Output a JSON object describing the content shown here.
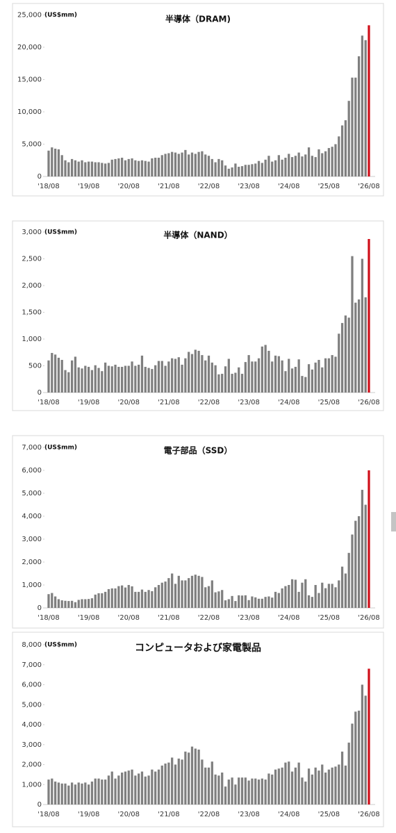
{
  "chart_data": [
    {
      "type": "bar",
      "title": "半導体（DRAM)",
      "unit_label": "(US$mm)",
      "color": "#7f7f7f",
      "last_color": "#d0101b",
      "categories": [
        "'18/08",
        null,
        null,
        null,
        null,
        null,
        null,
        null,
        null,
        null,
        null,
        null,
        "'19/08",
        null,
        null,
        null,
        null,
        null,
        null,
        null,
        null,
        null,
        null,
        null,
        "'20/08",
        null,
        null,
        null,
        null,
        null,
        null,
        null,
        null,
        null,
        null,
        null,
        "'21/08",
        null,
        null,
        null,
        null,
        null,
        null,
        null,
        null,
        null,
        null,
        null,
        "'22/08",
        null,
        null,
        null,
        null,
        null,
        null,
        null,
        null,
        null,
        null,
        null,
        "'23/08",
        null,
        null,
        null,
        null,
        null,
        null,
        null,
        null,
        null,
        null,
        null,
        "'24/08",
        null,
        null,
        null,
        null,
        null,
        null,
        null,
        null,
        null,
        null,
        null,
        "'25/08",
        null,
        null,
        null,
        null,
        null,
        null,
        null,
        null,
        null,
        null,
        null,
        "'26/08"
      ],
      "values": [
        4000,
        4500,
        4300,
        4200,
        3300,
        2500,
        2200,
        2700,
        2500,
        2300,
        2500,
        2200,
        2300,
        2300,
        2200,
        2200,
        2100,
        2000,
        2100,
        2600,
        2700,
        2800,
        2900,
        2500,
        2700,
        2800,
        2500,
        2400,
        2500,
        2400,
        2300,
        2800,
        2900,
        2900,
        3300,
        3500,
        3600,
        3800,
        3700,
        3500,
        3700,
        4100,
        3400,
        3700,
        3500,
        3800,
        3900,
        3400,
        3200,
        2700,
        2200,
        2700,
        2500,
        1700,
        1200,
        1400,
        2000,
        1500,
        1600,
        1800,
        1800,
        1900,
        2000,
        2400,
        2100,
        2600,
        3200,
        2300,
        2500,
        3300,
        2600,
        2900,
        3500,
        3000,
        3200,
        3700,
        3100,
        3400,
        4500,
        3200,
        3000,
        4200,
        3600,
        3900,
        4400,
        4600,
        5000,
        6200,
        7900,
        8700,
        11700,
        15300,
        15300,
        18600,
        21800,
        21100,
        23400
      ],
      "ylim": [
        0,
        25000
      ],
      "yticks": [
        0,
        {
          "value": 5000,
          "label": "5,000"
        },
        {
          "value": 10000,
          "label": "10,000"
        },
        {
          "value": 15000,
          "label": "15,000"
        },
        {
          "value": 20000,
          "label": "20,000"
        },
        {
          "value": 25000,
          "label": "25,000"
        }
      ]
    },
    {
      "type": "bar",
      "title": "半導体（NAND）",
      "unit_label": "(US$mm)",
      "color": "#7f7f7f",
      "last_color": "#d0101b",
      "categories": [
        "'18/08",
        null,
        null,
        null,
        null,
        null,
        null,
        null,
        null,
        null,
        null,
        null,
        "'19/08",
        null,
        null,
        null,
        null,
        null,
        null,
        null,
        null,
        null,
        null,
        null,
        "'20/08",
        null,
        null,
        null,
        null,
        null,
        null,
        null,
        null,
        null,
        null,
        null,
        "'21/08",
        null,
        null,
        null,
        null,
        null,
        null,
        null,
        null,
        null,
        null,
        null,
        "'22/08",
        null,
        null,
        null,
        null,
        null,
        null,
        null,
        null,
        null,
        null,
        null,
        "'23/08",
        null,
        null,
        null,
        null,
        null,
        null,
        null,
        null,
        null,
        null,
        null,
        "'24/08",
        null,
        null,
        null,
        null,
        null,
        null,
        null,
        null,
        null,
        null,
        null,
        "'25/08",
        null,
        null,
        null,
        null,
        null,
        null,
        null,
        null,
        null,
        null,
        null,
        "'26/08"
      ],
      "values": [
        600,
        740,
        710,
        650,
        610,
        420,
        380,
        600,
        670,
        470,
        450,
        500,
        480,
        420,
        510,
        460,
        400,
        560,
        500,
        490,
        520,
        480,
        480,
        500,
        500,
        580,
        500,
        520,
        690,
        480,
        460,
        440,
        510,
        590,
        590,
        500,
        580,
        640,
        630,
        660,
        520,
        640,
        760,
        720,
        800,
        780,
        700,
        600,
        690,
        560,
        510,
        340,
        350,
        490,
        630,
        350,
        370,
        470,
        350,
        570,
        700,
        580,
        580,
        640,
        860,
        890,
        780,
        580,
        690,
        680,
        600,
        400,
        630,
        450,
        480,
        620,
        310,
        290,
        530,
        430,
        560,
        610,
        470,
        640,
        640,
        700,
        670,
        1100,
        1300,
        1440,
        1400,
        2550,
        1680,
        1740,
        2500,
        1780,
        2870
      ],
      "ylim": [
        0,
        3000
      ],
      "yticks": [
        0,
        500,
        {
          "value": 1000,
          "label": "1,000"
        },
        {
          "value": 1500,
          "label": "1,500"
        },
        {
          "value": 2000,
          "label": "2,000"
        },
        {
          "value": 2500,
          "label": "2,500"
        },
        {
          "value": 3000,
          "label": "3,000"
        }
      ]
    },
    {
      "type": "bar",
      "title": "電子部品（SSD）",
      "unit_label": "(US$mm)",
      "color": "#7f7f7f",
      "last_color": "#d0101b",
      "categories": [
        "'18/08",
        null,
        null,
        null,
        null,
        null,
        null,
        null,
        null,
        null,
        null,
        null,
        "'19/08",
        null,
        null,
        null,
        null,
        null,
        null,
        null,
        null,
        null,
        null,
        null,
        "'20/08",
        null,
        null,
        null,
        null,
        null,
        null,
        null,
        null,
        null,
        null,
        null,
        "'21/08",
        null,
        null,
        null,
        null,
        null,
        null,
        null,
        null,
        null,
        null,
        null,
        "'22/08",
        null,
        null,
        null,
        null,
        null,
        null,
        null,
        null,
        null,
        null,
        null,
        "'23/08",
        null,
        null,
        null,
        null,
        null,
        null,
        null,
        null,
        null,
        null,
        null,
        "'24/08",
        null,
        null,
        null,
        null,
        null,
        null,
        null,
        null,
        null,
        null,
        null,
        "'25/08",
        null,
        null,
        null,
        null,
        null,
        null,
        null,
        null,
        null,
        null,
        null,
        "'26/08"
      ],
      "values": [
        600,
        650,
        500,
        380,
        330,
        310,
        300,
        310,
        250,
        350,
        380,
        380,
        390,
        420,
        580,
        640,
        640,
        700,
        820,
        850,
        850,
        950,
        980,
        890,
        1000,
        940,
        700,
        700,
        800,
        700,
        780,
        730,
        900,
        1000,
        1100,
        1150,
        1300,
        1500,
        1050,
        1400,
        1200,
        1200,
        1300,
        1400,
        1450,
        1400,
        1350,
        900,
        950,
        1200,
        680,
        720,
        780,
        330,
        380,
        520,
        300,
        550,
        540,
        550,
        340,
        500,
        460,
        400,
        400,
        480,
        500,
        450,
        700,
        650,
        850,
        950,
        1000,
        1250,
        1230,
        700,
        1100,
        1250,
        550,
        480,
        1000,
        650,
        1100,
        860,
        1050,
        1050,
        900,
        1200,
        1800,
        1500,
        2400,
        3200,
        3800,
        4000,
        5150,
        4500,
        6000
      ],
      "ylim": [
        0,
        7000
      ],
      "yticks": [
        0,
        {
          "value": 1000,
          "label": "1,000"
        },
        {
          "value": 2000,
          "label": "2,000"
        },
        {
          "value": 3000,
          "label": "3,000"
        },
        {
          "value": 4000,
          "label": "4,000"
        },
        {
          "value": 5000,
          "label": "5,000"
        },
        {
          "value": 6000,
          "label": "6,000"
        },
        {
          "value": 7000,
          "label": "7,000"
        }
      ]
    },
    {
      "type": "bar",
      "title": "コンピュータおよび家電製品",
      "unit_label": "(US$mm)",
      "color": "#7f7f7f",
      "last_color": "#d0101b",
      "categories": [
        "'18/08",
        null,
        null,
        null,
        null,
        null,
        null,
        null,
        null,
        null,
        null,
        null,
        "'19/08",
        null,
        null,
        null,
        null,
        null,
        null,
        null,
        null,
        null,
        null,
        null,
        "'20/08",
        null,
        null,
        null,
        null,
        null,
        null,
        null,
        null,
        null,
        null,
        null,
        "'21/08",
        null,
        null,
        null,
        null,
        null,
        null,
        null,
        null,
        null,
        null,
        null,
        "'22/08",
        null,
        null,
        null,
        null,
        null,
        null,
        null,
        null,
        null,
        null,
        null,
        "'23/08",
        null,
        null,
        null,
        null,
        null,
        null,
        null,
        null,
        null,
        null,
        null,
        "'24/08",
        null,
        null,
        null,
        null,
        null,
        null,
        null,
        null,
        null,
        null,
        null,
        "'25/08",
        null,
        null,
        null,
        null,
        null,
        null,
        null,
        null,
        null,
        null,
        null,
        "'26/08"
      ],
      "values": [
        1250,
        1300,
        1150,
        1100,
        1050,
        1050,
        950,
        1100,
        1000,
        1100,
        1050,
        1100,
        1000,
        1150,
        1300,
        1300,
        1250,
        1250,
        1450,
        1650,
        1300,
        1450,
        1600,
        1650,
        1700,
        1750,
        1450,
        1550,
        1650,
        1400,
        1450,
        1750,
        1650,
        1750,
        1950,
        2050,
        2100,
        2350,
        2000,
        2300,
        2250,
        2650,
        2600,
        2900,
        2800,
        2750,
        2250,
        1850,
        1850,
        2150,
        1500,
        1450,
        1600,
        900,
        1250,
        1350,
        1000,
        1350,
        1350,
        1350,
        1200,
        1300,
        1300,
        1250,
        1300,
        1250,
        1550,
        1500,
        1750,
        1800,
        1850,
        2100,
        2150,
        1650,
        1850,
        2100,
        1350,
        1150,
        1800,
        1500,
        1850,
        1700,
        2000,
        1600,
        1750,
        1850,
        1900,
        2000,
        2650,
        1950,
        3100,
        4050,
        4650,
        4700,
        6000,
        5450,
        6800
      ],
      "ylim": [
        0,
        8000
      ],
      "yticks": [
        0,
        {
          "value": 1000,
          "label": "1,000"
        },
        {
          "value": 2000,
          "label": "2,000"
        },
        {
          "value": 3000,
          "label": "3,000"
        },
        {
          "value": 4000,
          "label": "4,000"
        },
        {
          "value": 5000,
          "label": "5,000"
        },
        {
          "value": 6000,
          "label": "6,000"
        },
        {
          "value": 7000,
          "label": "7,000"
        },
        {
          "value": 8000,
          "label": "8,000"
        }
      ]
    }
  ]
}
